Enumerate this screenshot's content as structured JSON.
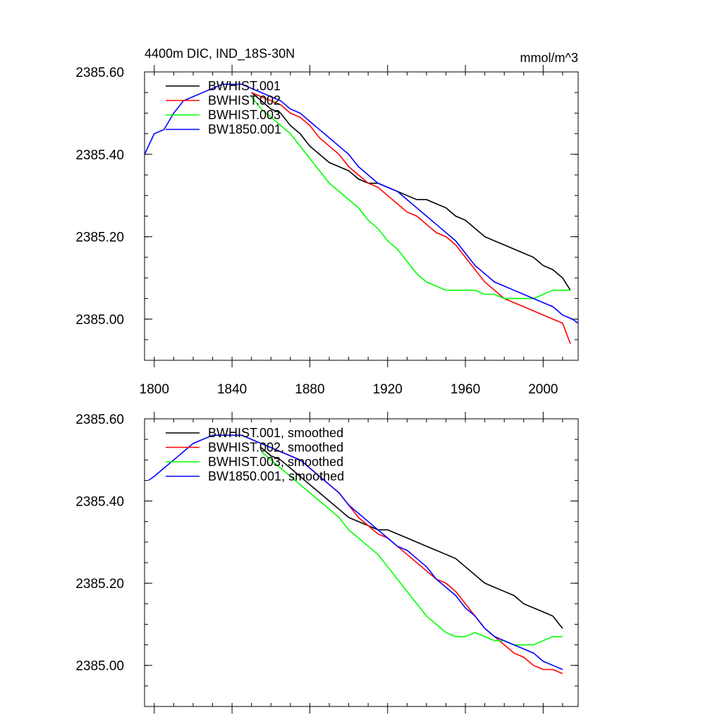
{
  "chart_data": [
    {
      "type": "line",
      "title_left": "4400m DIC, IND_18S-30N",
      "title_right": "mmol/m^3",
      "xlabel": "",
      "ylabel": "",
      "xlim": [
        1795,
        2018
      ],
      "ylim": [
        2384.9,
        2385.6
      ],
      "x_ticks": [
        1800,
        1840,
        1880,
        1920,
        1960,
        2000
      ],
      "y_ticks": [
        2385.0,
        2385.2,
        2385.4,
        2385.6
      ],
      "y_tick_labels": [
        "2385.00",
        "2385.20",
        "2385.40",
        "2385.60"
      ],
      "show_x_tick_labels": true,
      "legend": "top-left",
      "series": [
        {
          "name": "BWHIST.001",
          "color": "#000000",
          "x": [
            1850,
            1855,
            1860,
            1865,
            1870,
            1875,
            1880,
            1885,
            1890,
            1895,
            1900,
            1905,
            1910,
            1915,
            1920,
            1925,
            1930,
            1935,
            1940,
            1945,
            1950,
            1955,
            1960,
            1965,
            1970,
            1975,
            1980,
            1985,
            1990,
            1995,
            2000,
            2005,
            2010,
            2014
          ],
          "y": [
            2385.55,
            2385.53,
            2385.51,
            2385.5,
            2385.47,
            2385.45,
            2385.42,
            2385.4,
            2385.38,
            2385.37,
            2385.36,
            2385.34,
            2385.33,
            2385.33,
            2385.32,
            2385.31,
            2385.3,
            2385.29,
            2385.29,
            2385.28,
            2385.27,
            2385.25,
            2385.24,
            2385.22,
            2385.2,
            2385.19,
            2385.18,
            2385.17,
            2385.16,
            2385.15,
            2385.13,
            2385.12,
            2385.1,
            2385.07
          ]
        },
        {
          "name": "BWHIST.002",
          "color": "#ff0000",
          "x": [
            1850,
            1855,
            1860,
            1865,
            1870,
            1875,
            1880,
            1885,
            1890,
            1895,
            1900,
            1905,
            1910,
            1915,
            1920,
            1925,
            1930,
            1935,
            1940,
            1945,
            1950,
            1955,
            1960,
            1965,
            1970,
            1975,
            1980,
            1985,
            1990,
            1995,
            2000,
            2005,
            2010,
            2014
          ],
          "y": [
            2385.55,
            2385.54,
            2385.53,
            2385.52,
            2385.5,
            2385.49,
            2385.47,
            2385.44,
            2385.42,
            2385.4,
            2385.37,
            2385.35,
            2385.33,
            2385.32,
            2385.3,
            2385.28,
            2385.26,
            2385.25,
            2385.23,
            2385.21,
            2385.2,
            2385.18,
            2385.15,
            2385.12,
            2385.09,
            2385.07,
            2385.05,
            2385.04,
            2385.03,
            2385.02,
            2385.01,
            2385.0,
            2384.99,
            2384.94
          ]
        },
        {
          "name": "BWHIST.003",
          "color": "#00ff00",
          "x": [
            1850,
            1855,
            1860,
            1865,
            1870,
            1875,
            1880,
            1885,
            1890,
            1895,
            1900,
            1905,
            1910,
            1915,
            1920,
            1925,
            1930,
            1935,
            1940,
            1945,
            1950,
            1955,
            1960,
            1965,
            1970,
            1975,
            1980,
            1985,
            1990,
            1995,
            2000,
            2005,
            2010,
            2014
          ],
          "y": [
            2385.54,
            2385.51,
            2385.49,
            2385.47,
            2385.45,
            2385.42,
            2385.39,
            2385.36,
            2385.33,
            2385.31,
            2385.29,
            2385.27,
            2385.24,
            2385.22,
            2385.19,
            2385.17,
            2385.14,
            2385.11,
            2385.09,
            2385.08,
            2385.07,
            2385.07,
            2385.07,
            2385.07,
            2385.06,
            2385.06,
            2385.05,
            2385.05,
            2385.05,
            2385.05,
            2385.06,
            2385.07,
            2385.07,
            2385.07
          ]
        },
        {
          "name": "BW1850.001",
          "color": "#0000ff",
          "x": [
            1795,
            1800,
            1805,
            1810,
            1815,
            1820,
            1825,
            1830,
            1835,
            1840,
            1845,
            1850,
            1855,
            1860,
            1865,
            1870,
            1875,
            1880,
            1885,
            1890,
            1895,
            1900,
            1905,
            1910,
            1915,
            1920,
            1925,
            1930,
            1935,
            1940,
            1945,
            1950,
            1955,
            1960,
            1965,
            1970,
            1975,
            1980,
            1985,
            1990,
            1995,
            2000,
            2005,
            2010,
            2015,
            2018
          ],
          "y": [
            2385.4,
            2385.45,
            2385.46,
            2385.5,
            2385.53,
            2385.54,
            2385.55,
            2385.56,
            2385.57,
            2385.57,
            2385.57,
            2385.56,
            2385.55,
            2385.54,
            2385.53,
            2385.51,
            2385.5,
            2385.48,
            2385.46,
            2385.44,
            2385.42,
            2385.4,
            2385.37,
            2385.35,
            2385.33,
            2385.32,
            2385.31,
            2385.29,
            2385.27,
            2385.25,
            2385.23,
            2385.21,
            2385.19,
            2385.16,
            2385.13,
            2385.11,
            2385.09,
            2385.08,
            2385.07,
            2385.06,
            2385.05,
            2385.04,
            2385.03,
            2385.01,
            2385.0,
            2384.99
          ]
        }
      ]
    },
    {
      "type": "line",
      "title_left": "",
      "title_right": "",
      "xlabel": "",
      "ylabel": "",
      "xlim": [
        1795,
        2018
      ],
      "ylim": [
        2384.9,
        2385.6
      ],
      "x_ticks": [
        1800,
        1840,
        1880,
        1920,
        1960,
        2000
      ],
      "y_ticks": [
        2385.0,
        2385.2,
        2385.4,
        2385.6
      ],
      "y_tick_labels": [
        "2385.00",
        "2385.20",
        "2385.40",
        "2385.60"
      ],
      "show_x_tick_labels": false,
      "legend": "top-left",
      "series": [
        {
          "name": "BWHIST.001, smoothed",
          "color": "#000000",
          "x": [
            1855,
            1860,
            1865,
            1870,
            1875,
            1880,
            1885,
            1890,
            1895,
            1900,
            1905,
            1910,
            1915,
            1920,
            1925,
            1930,
            1935,
            1940,
            1945,
            1950,
            1955,
            1960,
            1965,
            1970,
            1975,
            1980,
            1985,
            1990,
            1995,
            2000,
            2005,
            2010
          ],
          "y": [
            2385.53,
            2385.51,
            2385.5,
            2385.48,
            2385.46,
            2385.44,
            2385.42,
            2385.4,
            2385.38,
            2385.36,
            2385.35,
            2385.34,
            2385.33,
            2385.33,
            2385.32,
            2385.31,
            2385.3,
            2385.29,
            2385.28,
            2385.27,
            2385.26,
            2385.24,
            2385.22,
            2385.2,
            2385.19,
            2385.18,
            2385.17,
            2385.15,
            2385.14,
            2385.13,
            2385.12,
            2385.09
          ]
        },
        {
          "name": "BWHIST.002, smoothed",
          "color": "#ff0000",
          "x": [
            1855,
            1860,
            1865,
            1870,
            1875,
            1880,
            1885,
            1890,
            1895,
            1900,
            1905,
            1910,
            1915,
            1920,
            1925,
            1930,
            1935,
            1940,
            1945,
            1950,
            1955,
            1960,
            1965,
            1970,
            1975,
            1980,
            1985,
            1990,
            1995,
            2000,
            2005,
            2010
          ],
          "y": [
            2385.54,
            2385.53,
            2385.52,
            2385.51,
            2385.5,
            2385.48,
            2385.46,
            2385.44,
            2385.42,
            2385.39,
            2385.36,
            2385.34,
            2385.32,
            2385.31,
            2385.29,
            2385.27,
            2385.25,
            2385.23,
            2385.21,
            2385.2,
            2385.18,
            2385.15,
            2385.12,
            2385.09,
            2385.07,
            2385.05,
            2385.03,
            2385.02,
            2385.0,
            2384.99,
            2384.99,
            2384.98
          ]
        },
        {
          "name": "BWHIST.003, smoothed",
          "color": "#00ff00",
          "x": [
            1855,
            1860,
            1865,
            1870,
            1875,
            1880,
            1885,
            1890,
            1895,
            1900,
            1905,
            1910,
            1915,
            1920,
            1925,
            1930,
            1935,
            1940,
            1945,
            1950,
            1955,
            1960,
            1965,
            1970,
            1975,
            1980,
            1985,
            1990,
            1995,
            2000,
            2005,
            2010
          ],
          "y": [
            2385.52,
            2385.5,
            2385.48,
            2385.46,
            2385.44,
            2385.42,
            2385.4,
            2385.38,
            2385.36,
            2385.33,
            2385.31,
            2385.29,
            2385.27,
            2385.24,
            2385.21,
            2385.18,
            2385.15,
            2385.12,
            2385.1,
            2385.08,
            2385.07,
            2385.07,
            2385.08,
            2385.07,
            2385.06,
            2385.06,
            2385.05,
            2385.05,
            2385.05,
            2385.06,
            2385.07,
            2385.07
          ]
        },
        {
          "name": "BW1850.001, smoothed",
          "color": "#0000ff",
          "x": [
            1797,
            1800,
            1805,
            1810,
            1815,
            1820,
            1825,
            1830,
            1835,
            1840,
            1845,
            1850,
            1855,
            1860,
            1865,
            1870,
            1875,
            1880,
            1885,
            1890,
            1895,
            1900,
            1905,
            1910,
            1915,
            1920,
            1925,
            1930,
            1935,
            1940,
            1945,
            1950,
            1955,
            1960,
            1965,
            1970,
            1975,
            1980,
            1985,
            1990,
            1995,
            2000,
            2005,
            2010
          ],
          "y": [
            2385.45,
            2385.46,
            2385.48,
            2385.5,
            2385.52,
            2385.54,
            2385.55,
            2385.56,
            2385.56,
            2385.56,
            2385.56,
            2385.55,
            2385.54,
            2385.53,
            2385.52,
            2385.51,
            2385.5,
            2385.48,
            2385.46,
            2385.44,
            2385.42,
            2385.39,
            2385.37,
            2385.35,
            2385.33,
            2385.31,
            2385.29,
            2385.28,
            2385.26,
            2385.24,
            2385.21,
            2385.19,
            2385.17,
            2385.14,
            2385.12,
            2385.09,
            2385.07,
            2385.06,
            2385.05,
            2385.04,
            2385.03,
            2385.01,
            2385.0,
            2384.99
          ]
        }
      ]
    }
  ]
}
